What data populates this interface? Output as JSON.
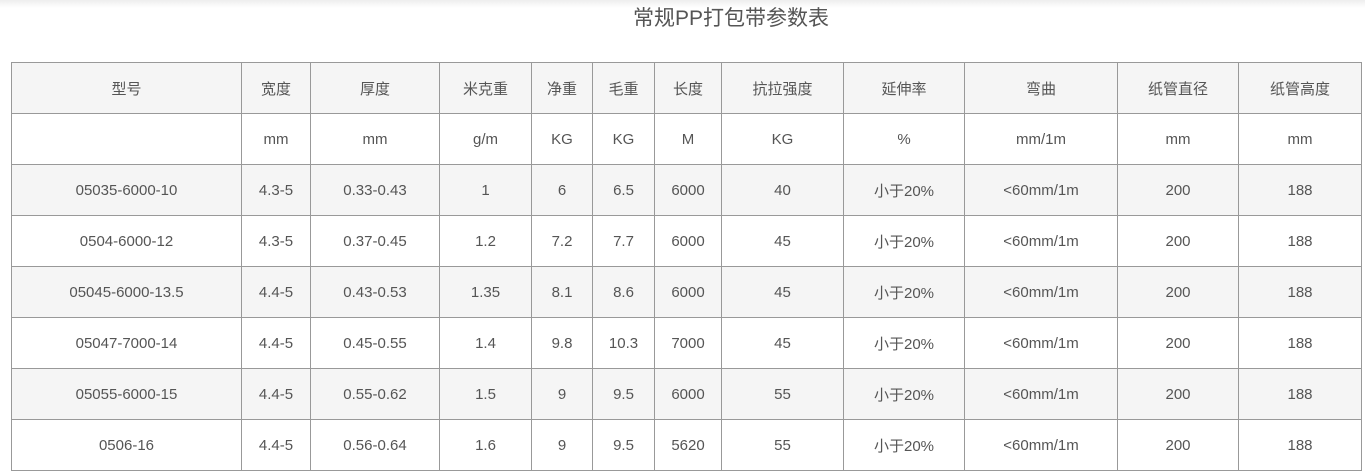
{
  "title": "常规PP打包带参数表",
  "headers": [
    "型号",
    "宽度",
    "厚度",
    "米克重",
    "净重",
    "毛重",
    "长度",
    "抗拉强度",
    "延伸率",
    "弯曲",
    "纸管直径",
    "纸管高度"
  ],
  "units": [
    "",
    "mm",
    "mm",
    "g/m",
    "KG",
    "KG",
    "M",
    "KG",
    "%",
    "mm/1m",
    "mm",
    "mm"
  ],
  "rows": [
    [
      "05035-6000-10",
      "4.3-5",
      "0.33-0.43",
      "1",
      "6",
      "6.5",
      "6000",
      "40",
      "小于20%",
      "<60mm/1m",
      "200",
      "188"
    ],
    [
      "0504-6000-12",
      "4.3-5",
      "0.37-0.45",
      "1.2",
      "7.2",
      "7.7",
      "6000",
      "45",
      "小于20%",
      "<60mm/1m",
      "200",
      "188"
    ],
    [
      "05045-6000-13.5",
      "4.4-5",
      "0.43-0.53",
      "1.35",
      "8.1",
      "8.6",
      "6000",
      "45",
      "小于20%",
      "<60mm/1m",
      "200",
      "188"
    ],
    [
      "05047-7000-14",
      "4.4-5",
      "0.45-0.55",
      "1.4",
      "9.8",
      "10.3",
      "7000",
      "45",
      "小于20%",
      "<60mm/1m",
      "200",
      "188"
    ],
    [
      "05055-6000-15",
      "4.4-5",
      "0.55-0.62",
      "1.5",
      "9",
      "9.5",
      "6000",
      "55",
      "小于20%",
      "<60mm/1m",
      "200",
      "188"
    ],
    [
      "0506-16",
      "4.4-5",
      "0.56-0.64",
      "1.6",
      "9",
      "9.5",
      "5620",
      "55",
      "小于20%",
      "<60mm/1m",
      "200",
      "188"
    ]
  ]
}
